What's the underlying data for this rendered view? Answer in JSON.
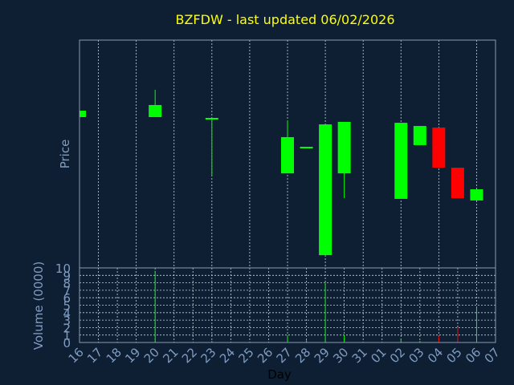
{
  "chart_data": {
    "type": "candlestick",
    "title": "BZFDW - last updated 06/02/2026",
    "ylabel": "Price",
    "y2label": "Volume (0000)",
    "xlabel": "Day",
    "categories": [
      "16",
      "17",
      "18",
      "19",
      "20",
      "21",
      "22",
      "23",
      "24",
      "25",
      "26",
      "27",
      "28",
      "29",
      "30",
      "31",
      "01",
      "02",
      "03",
      "04",
      "05",
      "06",
      "07"
    ],
    "open": [
      66.2,
      null,
      null,
      null,
      66.2,
      null,
      null,
      65.5,
      null,
      null,
      null,
      41.5,
      52.8,
      5.6,
      41.5,
      null,
      null,
      30.3,
      53.9,
      61.6,
      44.0,
      29.6,
      null
    ],
    "high": [
      69.0,
      null,
      null,
      null,
      78.2,
      null,
      null,
      65.5,
      null,
      null,
      null,
      64.8,
      52.8,
      63.0,
      64.1,
      null,
      null,
      63.7,
      62.3,
      61.6,
      44.0,
      34.5,
      null
    ],
    "low": [
      66.2,
      null,
      null,
      null,
      66.2,
      null,
      null,
      40.5,
      null,
      null,
      null,
      41.5,
      52.8,
      5.6,
      30.6,
      null,
      null,
      30.3,
      53.9,
      44.0,
      30.6,
      29.6,
      null
    ],
    "close": [
      69.0,
      null,
      null,
      null,
      71.5,
      null,
      null,
      65.5,
      null,
      null,
      null,
      57.4,
      52.8,
      63.0,
      64.1,
      null,
      null,
      63.7,
      62.3,
      44.0,
      30.6,
      34.5,
      null
    ],
    "volume": [
      0.1,
      null,
      null,
      null,
      9.6,
      null,
      null,
      0.2,
      null,
      null,
      null,
      1.0,
      0.3,
      8.0,
      1.0,
      null,
      null,
      0.5,
      0.2,
      0.9,
      2.0,
      4.8,
      null
    ],
    "ylim": [
      0,
      100
    ],
    "y2lim": [
      0,
      10
    ],
    "y2ticks": [
      0,
      1,
      2,
      3,
      4,
      5,
      6,
      7,
      8,
      9,
      10
    ],
    "up_color": "#00ff00",
    "down_color": "#ff0000",
    "grid": true
  }
}
